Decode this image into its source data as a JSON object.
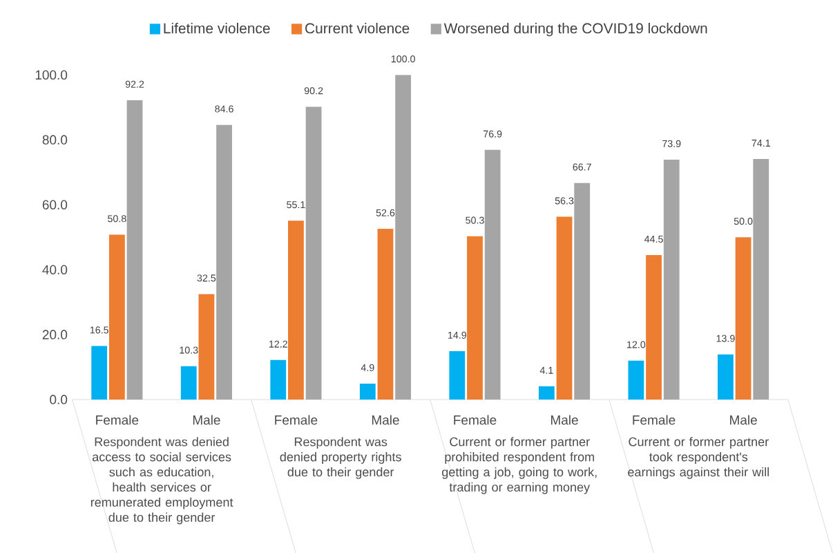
{
  "chart_data": {
    "type": "bar",
    "categories": [
      "Female",
      "Male",
      "Female",
      "Male",
      "Female",
      "Male",
      "Female",
      "Male"
    ],
    "series": [
      {
        "name": "Lifetime violence",
        "color": "#00b0f0",
        "values": [
          16.5,
          10.3,
          12.2,
          4.9,
          14.9,
          4.1,
          12.0,
          13.9
        ],
        "value_labels": [
          "16.5",
          "10.3",
          "12.2",
          "4.9",
          "14.9",
          "4.1",
          "12.0",
          "13.9"
        ]
      },
      {
        "name": "Current violence",
        "color": "#ed7d31",
        "values": [
          50.8,
          32.5,
          55.1,
          52.6,
          50.3,
          56.3,
          44.5,
          50.0
        ],
        "value_labels": [
          "50.8",
          "32.5",
          "55.1",
          "52.6",
          "50.3",
          "56.3",
          "44.5",
          "50.0"
        ]
      },
      {
        "name": "Worsened during the COVID19 lockdown",
        "color": "#a5a5a5",
        "values": [
          92.2,
          84.6,
          90.2,
          100.0,
          76.9,
          66.7,
          73.9,
          74.1
        ],
        "value_labels": [
          "92.2",
          "84.6",
          "90.2",
          "100.0",
          "76.9",
          "66.7",
          "73.9",
          "74.1"
        ]
      }
    ],
    "annotations": [
      "Respondent was denied access to social services such as education, health services or remunerated employment due to their gender",
      "Respondent was denied property rights due to their gender",
      "Current or former partner prohibited respondent from getting a job, going to work, trading or earning money",
      "Current or former partner took respondent's earnings against their will"
    ],
    "ylim": [
      0,
      100
    ],
    "yticks": [
      {
        "value": 0,
        "label": "0.0"
      },
      {
        "value": 20,
        "label": "20.0"
      },
      {
        "value": 40,
        "label": "40.0"
      },
      {
        "value": 60,
        "label": "60.0"
      },
      {
        "value": 80,
        "label": "80.0"
      },
      {
        "value": 100,
        "label": "100.0"
      }
    ],
    "grid": false,
    "legend": "top"
  }
}
